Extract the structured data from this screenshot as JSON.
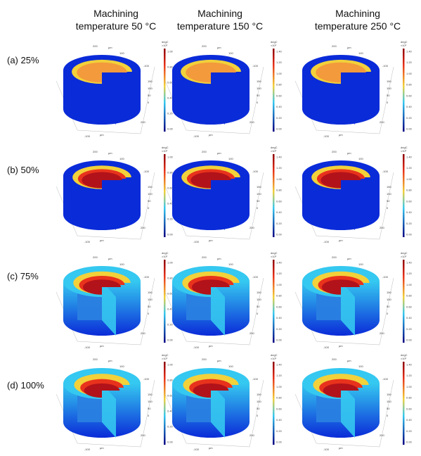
{
  "columns": [
    {
      "line1": "Machining",
      "line2": "temperature 50 °C"
    },
    {
      "line1": "Machining",
      "line2": "temperature 150 °C"
    },
    {
      "line1": "Machining",
      "line2": "temperature 250 °C"
    }
  ],
  "rows": [
    {
      "label": "(a) 25%"
    },
    {
      "label": "(b) 50%"
    },
    {
      "label": "(c) 75%"
    },
    {
      "label": "(d) 100%"
    }
  ],
  "axis_unit": "µm",
  "colorbar": {
    "unit_line1": "degC",
    "unit_line2": "×10³",
    "ticks_col1": [
      "1.00",
      "0.80",
      "0.60",
      "0.40",
      "0.20",
      "0.00"
    ],
    "ticks_col2": [
      "1.40",
      "1.20",
      "1.00",
      "0.80",
      "0.60",
      "0.40",
      "0.20",
      "0.00"
    ],
    "ticks_col3": [
      "1.40",
      "1.20",
      "1.00",
      "0.80",
      "0.60",
      "0.40",
      "0.20",
      "0.00"
    ]
  },
  "axis_ticks": {
    "top": [
      "200",
      "100",
      "0"
    ],
    "right": [
      "-100",
      "150",
      "100",
      "50",
      "0"
    ],
    "bottom": [
      "-100",
      "100",
      "200"
    ]
  },
  "colors": {
    "cold": "#0a2bd8",
    "mid": "#35c8f0",
    "warm": "#f2d13a",
    "hot": "#e8321c",
    "core_25": "#f39a3c"
  }
}
